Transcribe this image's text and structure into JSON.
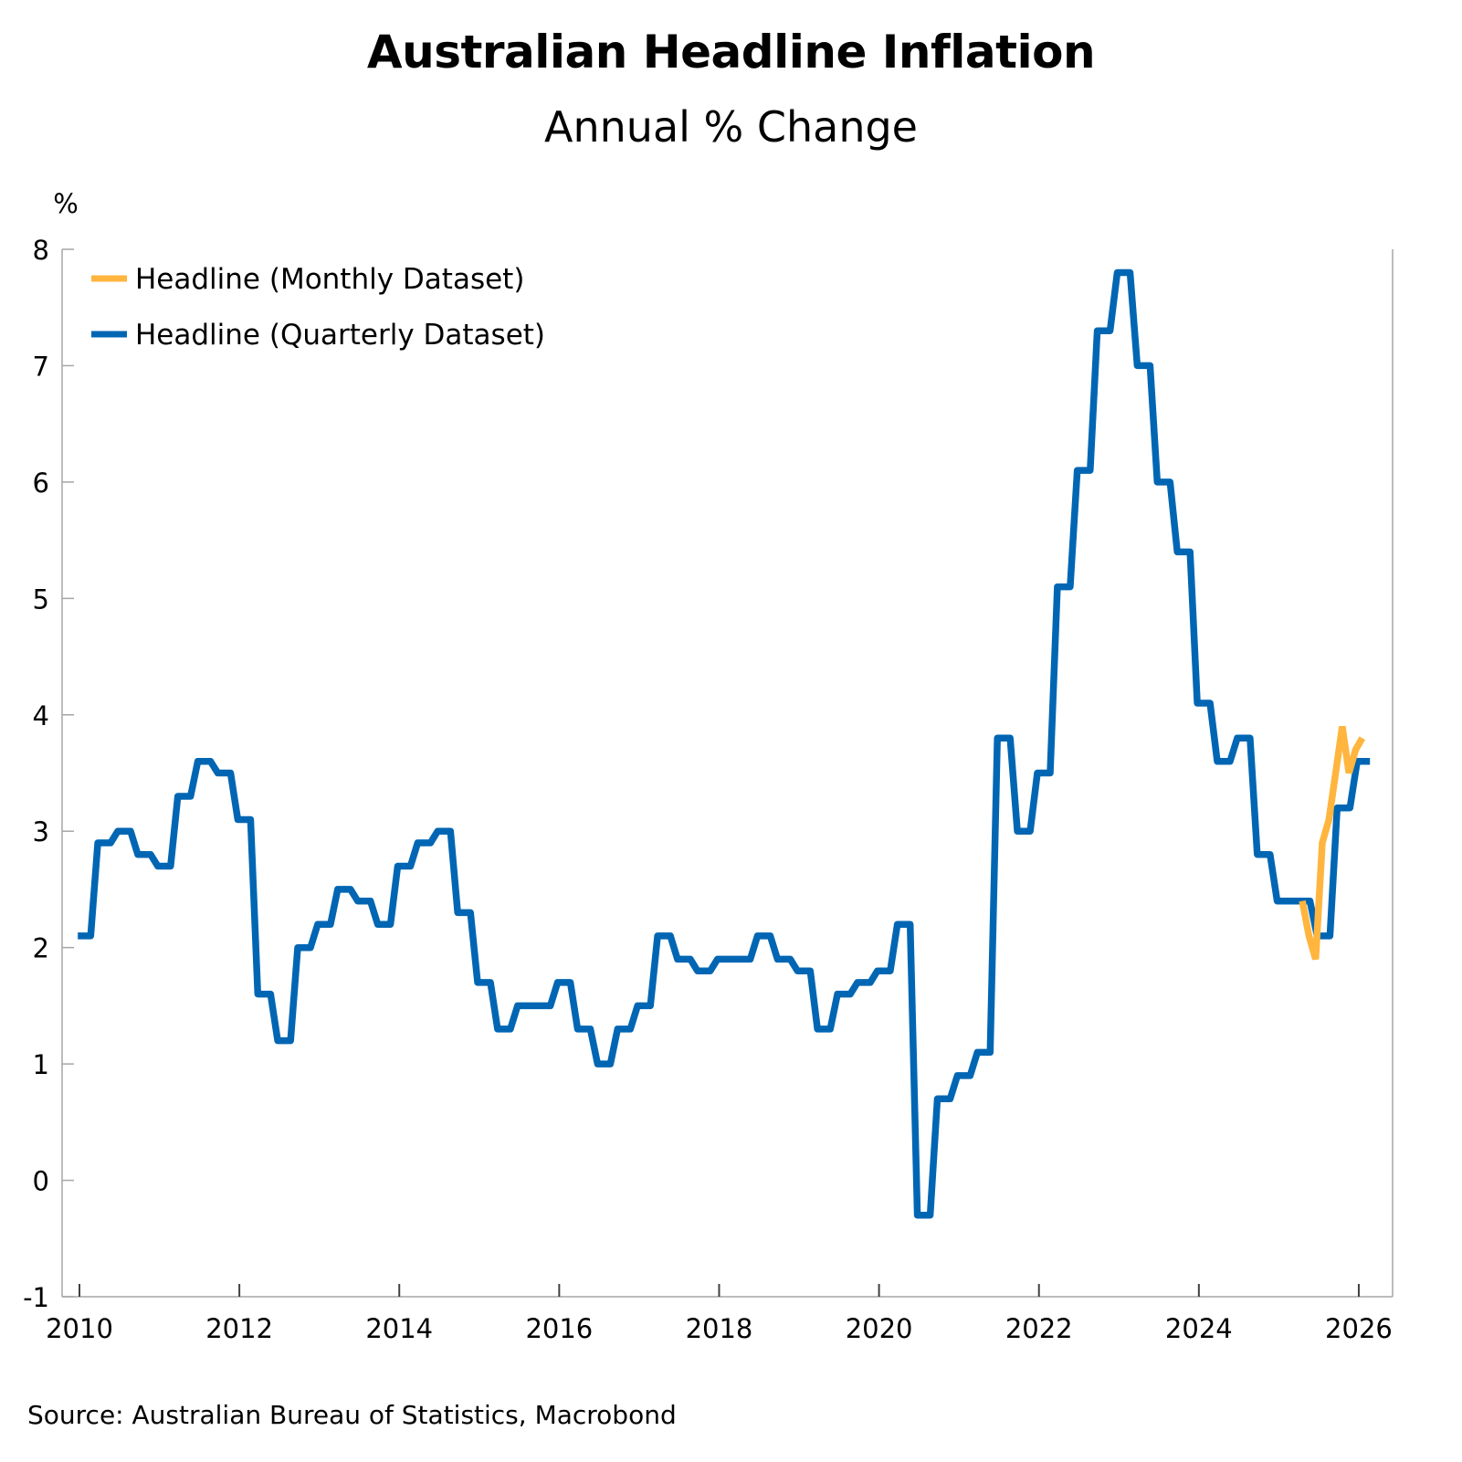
{
  "title": "Australian Headline Inflation",
  "subtitle": "Annual % Change",
  "source": "Source: Australian Bureau of Statistics, Macrobond",
  "chart_data": {
    "type": "line",
    "title": "Australian Headline Inflation",
    "subtitle": "Annual % Change",
    "ylabel": "%",
    "xlabel": "",
    "ylim": [
      -1,
      8
    ],
    "xlim": [
      2009.9,
      2026.4
    ],
    "yticks": [
      "-1",
      "0",
      "1",
      "2",
      "3",
      "4",
      "5",
      "6",
      "7",
      "8"
    ],
    "xticks": [
      "2010",
      "2012",
      "2014",
      "2016",
      "2018",
      "2020",
      "2022",
      "2024",
      "2026"
    ],
    "grid": false,
    "legend_position": "top-left",
    "colors": {
      "monthly": "#FFB53E",
      "quarterly": "#0066B3",
      "axis": "#A6A6A6",
      "tick": "#404040"
    },
    "series": [
      {
        "name": "Headline (Monthly Dataset)",
        "frequency": "monthly",
        "start": "2025-04",
        "values": [
          2.4,
          2.1,
          1.9,
          2.9,
          3.1,
          3.5,
          3.9,
          3.5,
          3.7,
          3.8
        ]
      },
      {
        "name": "Headline (Quarterly Dataset)",
        "frequency": "quarterly",
        "start": "2009-12",
        "values": [
          2.1,
          2.9,
          3.0,
          2.8,
          2.7,
          3.3,
          3.6,
          3.5,
          3.1,
          1.6,
          1.2,
          2.0,
          2.2,
          2.5,
          2.4,
          2.2,
          2.7,
          2.9,
          3.0,
          2.3,
          1.7,
          1.3,
          1.5,
          1.5,
          1.7,
          1.3,
          1.0,
          1.3,
          1.5,
          2.1,
          1.9,
          1.8,
          1.9,
          1.9,
          2.1,
          1.9,
          1.8,
          1.3,
          1.6,
          1.7,
          1.8,
          2.2,
          -0.3,
          0.7,
          0.9,
          1.1,
          3.8,
          3.0,
          3.5,
          5.1,
          6.1,
          7.3,
          7.8,
          7.0,
          6.0,
          5.4,
          4.1,
          3.6,
          3.8,
          2.8,
          2.4,
          2.4,
          2.1,
          3.2,
          3.6
        ]
      }
    ]
  }
}
